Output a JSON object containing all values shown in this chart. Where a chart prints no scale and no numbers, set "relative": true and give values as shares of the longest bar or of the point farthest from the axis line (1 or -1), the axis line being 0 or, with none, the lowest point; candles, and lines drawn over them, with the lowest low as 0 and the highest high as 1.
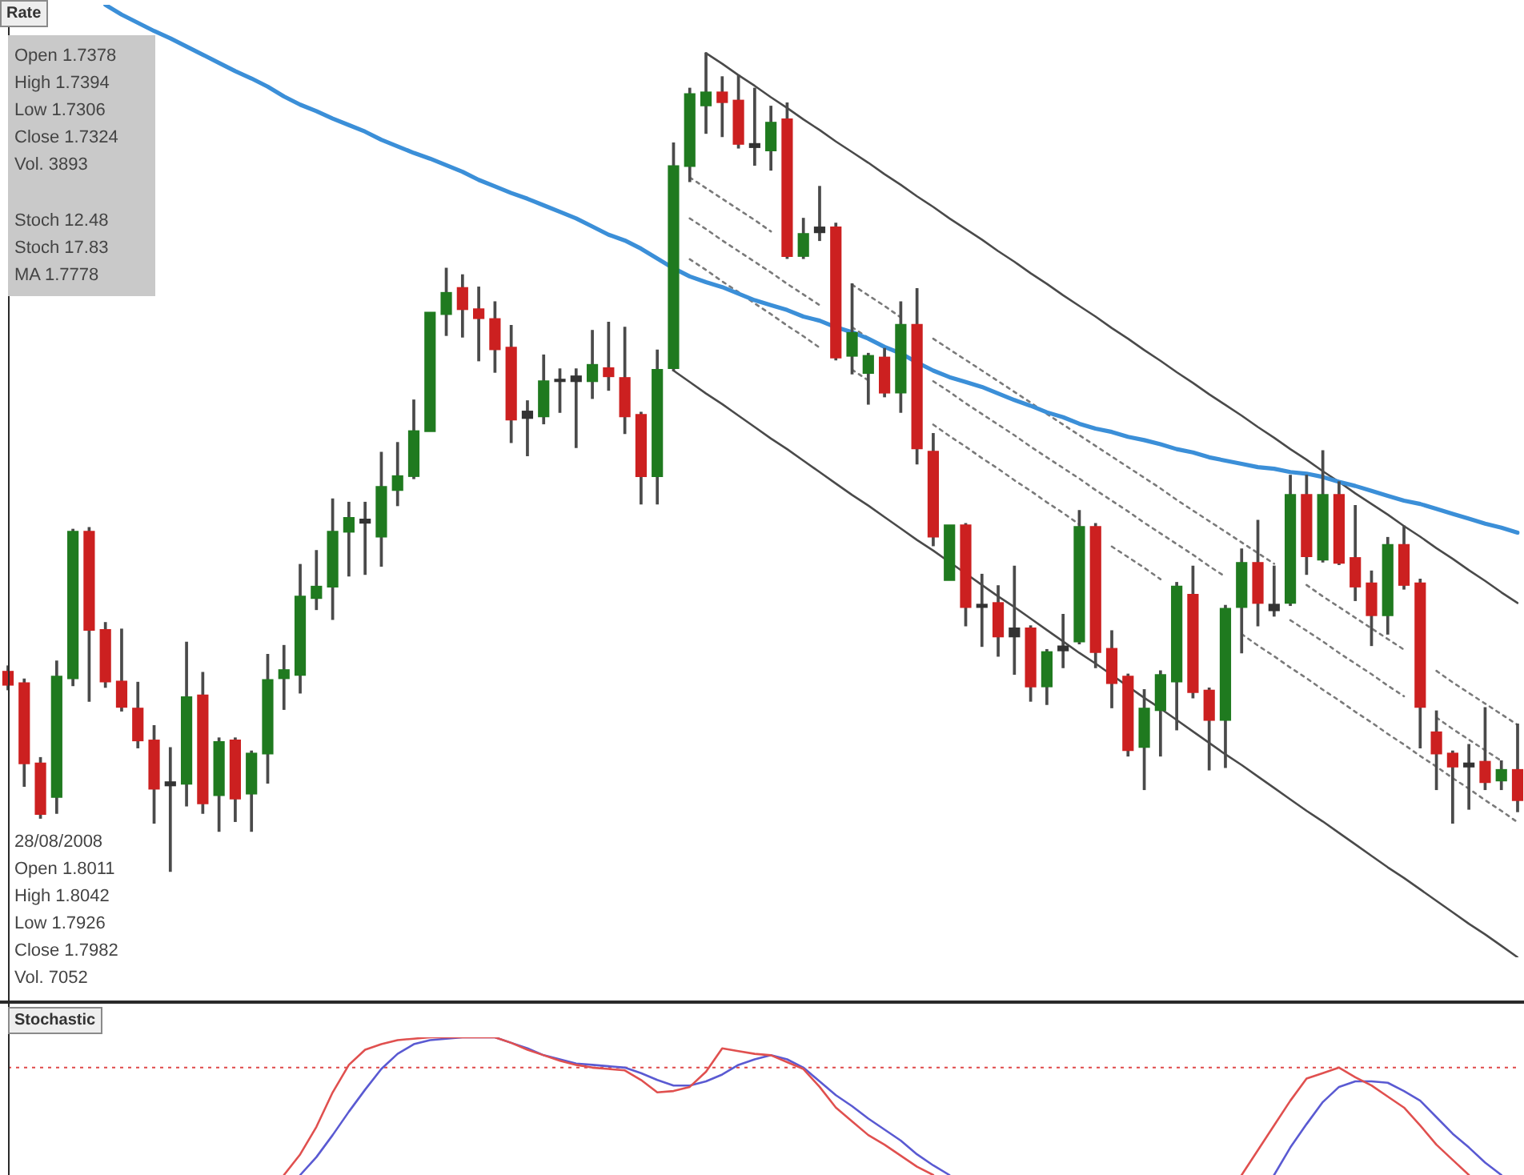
{
  "chart_data": [
    {
      "type": "candlestick",
      "title": "Rate",
      "relative": true,
      "tick_labels": false,
      "categories": [
        null,
        null,
        null,
        null,
        null,
        null,
        null,
        null,
        null,
        null,
        null,
        null,
        null,
        null,
        null,
        null,
        null,
        null,
        null,
        null,
        null,
        null,
        null,
        null,
        null,
        null,
        null,
        null,
        null,
        null,
        null,
        null,
        null,
        null,
        null,
        null,
        null,
        null,
        null,
        null,
        null,
        null,
        null,
        null,
        null,
        null,
        null,
        null,
        null,
        null,
        null,
        null,
        null,
        null,
        null,
        null,
        null,
        null,
        null,
        null,
        null,
        null,
        null,
        null,
        null,
        null,
        null,
        null,
        null,
        null,
        null,
        null,
        null,
        null,
        null,
        null,
        null,
        null,
        null,
        null,
        null,
        null,
        null,
        null,
        null,
        null,
        null,
        null,
        null,
        null,
        null,
        null,
        null,
        null
      ],
      "ohlc": [
        [
          0.245,
          0.251,
          0.222,
          0.227
        ],
        [
          0.231,
          0.235,
          0.104,
          0.131
        ],
        [
          0.133,
          0.139,
          0.065,
          0.069
        ],
        [
          0.09,
          0.257,
          0.071,
          0.239
        ],
        [
          0.235,
          0.418,
          0.227,
          0.416
        ],
        [
          0.416,
          0.42,
          0.208,
          0.294
        ],
        [
          0.296,
          0.304,
          0.225,
          0.231
        ],
        [
          0.233,
          0.296,
          0.196,
          0.2
        ],
        [
          0.2,
          0.231,
          0.151,
          0.159
        ],
        [
          0.161,
          0.178,
          0.059,
          0.1
        ],
        [
          0.11,
          0.151,
          0,
          0.104
        ],
        [
          0.106,
          0.28,
          0.08,
          0.214
        ],
        [
          0.216,
          0.243,
          0.071,
          0.082
        ],
        [
          0.092,
          0.163,
          0.049,
          0.159
        ],
        [
          0.161,
          0.163,
          0.061,
          0.088
        ],
        [
          0.094,
          0.147,
          0.049,
          0.145
        ],
        [
          0.143,
          0.265,
          0.108,
          0.235
        ],
        [
          0.235,
          0.276,
          0.198,
          0.247
        ],
        [
          0.239,
          0.375,
          0.218,
          0.337
        ],
        [
          0.333,
          0.392,
          0.32,
          0.349
        ],
        [
          0.347,
          0.455,
          0.308,
          0.416
        ],
        [
          0.414,
          0.451,
          0.361,
          0.433
        ],
        [
          0.431,
          0.451,
          0.363,
          0.425
        ],
        [
          0.408,
          0.512,
          0.373,
          0.471
        ],
        [
          0.465,
          0.524,
          0.447,
          0.484
        ],
        [
          0.482,
          0.576,
          0.48,
          0.539
        ],
        [
          0.537,
          0.684,
          0.537,
          0.684
        ],
        [
          0.68,
          0.737,
          0.655,
          0.708
        ],
        [
          0.714,
          0.729,
          0.653,
          0.686
        ],
        [
          0.688,
          0.714,
          0.624,
          0.675
        ],
        [
          0.676,
          0.696,
          0.61,
          0.637
        ],
        [
          0.641,
          0.667,
          0.524,
          0.551
        ],
        [
          0.553,
          0.575,
          0.508,
          0.563
        ],
        [
          0.555,
          0.631,
          0.547,
          0.6
        ],
        [
          0.598,
          0.614,
          0.561,
          0.602
        ],
        [
          0.606,
          0.614,
          0.518,
          0.598
        ],
        [
          0.598,
          0.661,
          0.578,
          0.62
        ],
        [
          0.616,
          0.671,
          0.588,
          0.604
        ],
        [
          0.604,
          0.665,
          0.535,
          0.555
        ],
        [
          0.559,
          0.561,
          0.449,
          0.482
        ],
        [
          0.482,
          0.637,
          0.449,
          0.614
        ],
        [
          0.614,
          0.89,
          0.612,
          0.863
        ],
        [
          0.861,
          0.957,
          0.843,
          0.951
        ],
        [
          0.935,
          1,
          0.902,
          0.953
        ],
        [
          0.953,
          0.971,
          0.898,
          0.939
        ],
        [
          0.943,
          0.973,
          0.884,
          0.888
        ],
        [
          0.89,
          0.957,
          0.863,
          0.884
        ],
        [
          0.88,
          0.935,
          0.857,
          0.916
        ],
        [
          0.92,
          0.939,
          0.749,
          0.751
        ],
        [
          0.751,
          0.798,
          0.749,
          0.78
        ],
        [
          0.78,
          0.837,
          0.771,
          0.788
        ],
        [
          0.788,
          0.792,
          0.625,
          0.627
        ],
        [
          0.629,
          0.718,
          0.608,
          0.659
        ],
        [
          0.608,
          0.633,
          0.571,
          0.631
        ],
        [
          0.629,
          0.639,
          0.58,
          0.584
        ],
        [
          0.584,
          0.696,
          0.561,
          0.669
        ],
        [
          0.669,
          0.712,
          0.498,
          0.516
        ],
        [
          0.514,
          0.535,
          0.398,
          0.408
        ],
        [
          0.355,
          0.424,
          0.355,
          0.424
        ],
        [
          0.424,
          0.425,
          0.3,
          0.322
        ],
        [
          0.322,
          0.363,
          0.275,
          0.327
        ],
        [
          0.329,
          0.349,
          0.263,
          0.286
        ],
        [
          0.286,
          0.373,
          0.241,
          0.298
        ],
        [
          0.298,
          0.3,
          0.208,
          0.225
        ],
        [
          0.225,
          0.271,
          0.204,
          0.269
        ],
        [
          0.269,
          0.314,
          0.249,
          0.276
        ],
        [
          0.28,
          0.441,
          0.278,
          0.422
        ],
        [
          0.422,
          0.425,
          0.249,
          0.267
        ],
        [
          0.273,
          0.294,
          0.2,
          0.229
        ],
        [
          0.239,
          0.241,
          0.141,
          0.147
        ],
        [
          0.151,
          0.222,
          0.1,
          0.2
        ],
        [
          0.196,
          0.245,
          0.141,
          0.241
        ],
        [
          0.231,
          0.353,
          0.173,
          0.349
        ],
        [
          0.339,
          0.373,
          0.212,
          0.218
        ],
        [
          0.222,
          0.224,
          0.124,
          0.184
        ],
        [
          0.184,
          0.325,
          0.127,
          0.322
        ],
        [
          0.322,
          0.394,
          0.267,
          0.378
        ],
        [
          0.378,
          0.429,
          0.3,
          0.327
        ],
        [
          0.327,
          0.373,
          0.312,
          0.318
        ],
        [
          0.327,
          0.484,
          0.325,
          0.461
        ],
        [
          0.461,
          0.484,
          0.363,
          0.384
        ],
        [
          0.38,
          0.514,
          0.378,
          0.461
        ],
        [
          0.461,
          0.476,
          0.375,
          0.376
        ],
        [
          0.384,
          0.447,
          0.331,
          0.347
        ],
        [
          0.353,
          0.367,
          0.276,
          0.312
        ],
        [
          0.312,
          0.408,
          0.29,
          0.4
        ],
        [
          0.4,
          0.422,
          0.345,
          0.349
        ],
        [
          0.353,
          0.357,
          0.151,
          0.2
        ],
        [
          0.171,
          0.196,
          0.1,
          0.143
        ],
        [
          0.145,
          0.147,
          0.059,
          0.127
        ],
        [
          0.133,
          0.155,
          0.076,
          0.127
        ],
        [
          0.135,
          0.2,
          0.1,
          0.108
        ],
        [
          0.11,
          0.135,
          0.1,
          0.125
        ],
        [
          0.125,
          0.18,
          0.073,
          0.086
        ]
      ],
      "colors": [
        "#cc2020",
        "#cc2020",
        "#cc2020",
        "#1f7a1f",
        "#1f7a1f",
        "#cc2020",
        "#cc2020",
        "#cc2020",
        "#cc2020",
        "#cc2020",
        "#333333",
        "#1f7a1f",
        "#cc2020",
        "#1f7a1f",
        "#cc2020",
        "#1f7a1f",
        "#1f7a1f",
        "#1f7a1f",
        "#1f7a1f",
        "#1f7a1f",
        "#1f7a1f",
        "#1f7a1f",
        "#333333",
        "#1f7a1f",
        "#1f7a1f",
        "#1f7a1f",
        "#1f7a1f",
        "#1f7a1f",
        "#cc2020",
        "#cc2020",
        "#cc2020",
        "#cc2020",
        "#333333",
        "#1f7a1f",
        "#333333",
        "#333333",
        "#1f7a1f",
        "#cc2020",
        "#cc2020",
        "#cc2020",
        "#1f7a1f",
        "#1f7a1f",
        "#1f7a1f",
        "#1f7a1f",
        "#cc2020",
        "#cc2020",
        "#333333",
        "#1f7a1f",
        "#cc2020",
        "#1f7a1f",
        "#333333",
        "#cc2020",
        "#1f7a1f",
        "#1f7a1f",
        "#cc2020",
        "#1f7a1f",
        "#cc2020",
        "#cc2020",
        "#1f7a1f",
        "#cc2020",
        "#333333",
        "#cc2020",
        "#333333",
        "#cc2020",
        "#1f7a1f",
        "#333333",
        "#1f7a1f",
        "#cc2020",
        "#cc2020",
        "#cc2020",
        "#1f7a1f",
        "#1f7a1f",
        "#1f7a1f",
        "#cc2020",
        "#cc2020",
        "#1f7a1f",
        "#1f7a1f",
        "#cc2020",
        "#333333",
        "#1f7a1f",
        "#cc2020",
        "#1f7a1f",
        "#cc2020",
        "#cc2020",
        "#cc2020",
        "#1f7a1f",
        "#cc2020",
        "#cc2020",
        "#cc2020",
        "#cc2020",
        "#333333",
        "#cc2020",
        "#1f7a1f",
        "#cc2020"
      ],
      "series": [
        {
          "type": "line",
          "color": "#3b8fd8",
          "values": [
            null,
            null,
            null,
            null,
            null,
            null,
            1.059,
            1.047,
            1.037,
            1.027,
            1.018,
            1.008,
            0.998,
            0.988,
            0.978,
            0.969,
            0.959,
            0.947,
            0.937,
            0.929,
            0.92,
            0.912,
            0.904,
            0.894,
            0.886,
            0.878,
            0.871,
            0.863,
            0.855,
            0.845,
            0.837,
            0.829,
            0.822,
            0.814,
            0.806,
            0.798,
            0.788,
            0.778,
            0.771,
            0.761,
            0.749,
            0.737,
            0.727,
            0.72,
            0.714,
            0.706,
            0.698,
            0.692,
            0.686,
            0.678,
            0.673,
            0.665,
            0.659,
            0.651,
            0.641,
            0.633,
            0.622,
            0.612,
            0.604,
            0.598,
            0.592,
            0.584,
            0.576,
            0.569,
            0.561,
            0.555,
            0.547,
            0.541,
            0.537,
            0.531,
            0.527,
            0.522,
            0.516,
            0.512,
            0.506,
            0.502,
            0.498,
            0.494,
            0.492,
            0.488,
            0.486,
            0.482,
            0.476,
            0.471,
            0.465,
            0.459,
            0.453,
            0.449,
            0.443,
            0.437,
            0.431,
            0.425,
            0.42,
            0.414
          ]
        },
        {
          "type": "line",
          "color": "#4a4a4a",
          "values": [
            null,
            null,
            null,
            null,
            null,
            null,
            null,
            null,
            null,
            null,
            null,
            null,
            null,
            null,
            null,
            null,
            null,
            null,
            null,
            null,
            null,
            null,
            null,
            null,
            null,
            null,
            null,
            null,
            null,
            null,
            null,
            null,
            null,
            null,
            null,
            null,
            null,
            null,
            null,
            null,
            null,
            null,
            null,
            1.0,
            0.987,
            0.973,
            0.96,
            0.946,
            0.933,
            0.919,
            0.906,
            0.892,
            0.879,
            0.866,
            0.852,
            0.839,
            0.825,
            0.812,
            0.798,
            0.785,
            0.772,
            0.758,
            0.745,
            0.731,
            0.718,
            0.704,
            0.691,
            0.678,
            0.664,
            0.651,
            0.637,
            0.624,
            0.61,
            0.597,
            0.583,
            0.57,
            0.557,
            0.543,
            0.53,
            0.516,
            0.503,
            0.489,
            0.476,
            0.462,
            0.449,
            0.436,
            0.422,
            0.409,
            0.395,
            0.382,
            0.368,
            0.355,
            0.341,
            0.328
          ]
        },
        {
          "type": "line",
          "color": "#4a4a4a",
          "values": [
            null,
            null,
            null,
            null,
            null,
            null,
            null,
            null,
            null,
            null,
            null,
            null,
            null,
            null,
            null,
            null,
            null,
            null,
            null,
            null,
            null,
            null,
            null,
            null,
            null,
            null,
            null,
            null,
            null,
            null,
            null,
            null,
            null,
            null,
            null,
            null,
            null,
            null,
            null,
            null,
            null,
            0.612,
            0.598,
            0.584,
            0.571,
            0.557,
            0.543,
            0.529,
            0.516,
            0.502,
            0.488,
            0.474,
            0.46,
            0.447,
            0.433,
            0.419,
            0.405,
            0.392,
            0.378,
            0.364,
            0.35,
            0.336,
            0.323,
            0.309,
            0.295,
            0.281,
            0.267,
            0.254,
            0.24,
            0.226,
            0.212,
            0.199,
            0.185,
            0.171,
            0.157,
            0.143,
            0.13,
            0.116,
            0.102,
            0.088,
            0.074,
            0.061,
            0.047,
            0.033,
            0.019,
            0.005,
            -0.008,
            -0.022,
            -0.036,
            -0.05,
            -0.064,
            -0.077,
            -0.091,
            -0.105
          ]
        },
        {
          "type": "line",
          "color": "#7a7a7a",
          "line_style": "dotted",
          "values": [
            null,
            null,
            null,
            null,
            null,
            null,
            null,
            null,
            null,
            null,
            null,
            null,
            null,
            null,
            null,
            null,
            null,
            null,
            null,
            null,
            null,
            null,
            null,
            null,
            null,
            null,
            null,
            null,
            null,
            null,
            null,
            null,
            null,
            null,
            null,
            null,
            null,
            null,
            null,
            null,
            null,
            null,
            0.848,
            0.835,
            0.822,
            0.809,
            0.796,
            0.782,
            null,
            null,
            null,
            null,
            0.717,
            0.704,
            0.691,
            0.677,
            null,
            0.651,
            0.638,
            0.625,
            0.612,
            0.599,
            0.586,
            0.573,
            0.559,
            0.546,
            0.533,
            0.52,
            0.507,
            0.494,
            0.481,
            0.468,
            0.454,
            0.441,
            0.428,
            0.415,
            0.402,
            0.389,
            0.376,
            null,
            0.35,
            0.336,
            0.323,
            0.31,
            0.297,
            0.284,
            0.271,
            null,
            0.245,
            0.231,
            0.218,
            0.205,
            0.192,
            0.179
          ]
        },
        {
          "type": "line",
          "color": "#7a7a7a",
          "line_style": "dotted",
          "values": [
            null,
            null,
            null,
            null,
            null,
            null,
            null,
            null,
            null,
            null,
            null,
            null,
            null,
            null,
            null,
            null,
            null,
            null,
            null,
            null,
            null,
            null,
            null,
            null,
            null,
            null,
            null,
            null,
            null,
            null,
            null,
            null,
            null,
            null,
            null,
            null,
            null,
            null,
            null,
            null,
            null,
            null,
            0.798,
            0.785,
            0.771,
            0.758,
            0.745,
            0.732,
            0.718,
            0.705,
            0.692,
            null,
            0.665,
            0.652,
            0.639,
            null,
            null,
            0.599,
            0.586,
            0.572,
            0.559,
            0.546,
            0.533,
            0.519,
            0.506,
            0.493,
            0.48,
            0.466,
            0.453,
            0.44,
            0.426,
            0.413,
            0.4,
            0.387,
            0.373,
            0.36,
            null,
            null,
            null,
            0.307,
            0.294,
            0.281,
            0.267,
            0.254,
            0.241,
            0.227,
            0.214,
            null,
            0.188,
            0.174,
            0.161,
            0.148,
            0.135,
            null
          ]
        },
        {
          "type": "line",
          "color": "#7a7a7a",
          "line_style": "dotted",
          "values": [
            null,
            null,
            null,
            null,
            null,
            null,
            null,
            null,
            null,
            null,
            null,
            null,
            null,
            null,
            null,
            null,
            null,
            null,
            null,
            null,
            null,
            null,
            null,
            null,
            null,
            null,
            null,
            null,
            null,
            null,
            null,
            null,
            null,
            null,
            null,
            null,
            null,
            null,
            null,
            null,
            null,
            null,
            0.748,
            0.735,
            0.721,
            0.708,
            0.694,
            0.681,
            0.667,
            0.654,
            0.64,
            null,
            0.613,
            0.6,
            null,
            null,
            null,
            0.546,
            0.532,
            0.519,
            0.505,
            0.492,
            0.478,
            0.465,
            0.451,
            0.438,
            0.424,
            null,
            0.397,
            0.384,
            0.371,
            0.357,
            null,
            null,
            null,
            null,
            0.29,
            0.276,
            0.263,
            0.249,
            0.236,
            0.222,
            0.209,
            0.195,
            0.182,
            0.168,
            0.155,
            0.141,
            0.128,
            0.114,
            0.101,
            0.087,
            0.074,
            0.06
          ]
        }
      ],
      "annotations": [
        "Open 1.7378\nHigh 1.7394\nLow 1.7306\nClose 1.7324\nVol. 3893",
        "Stoch 12.48\nStoch 17.83\nMA 1.7778",
        "28/08/2008\nOpen 1.8011\nHigh 1.8042\nLow 1.7926\nClose 1.7982\nVol. 7052"
      ]
    },
    {
      "type": "line",
      "title": "Stochastic",
      "relative": true,
      "tick_labels": false,
      "categories": [
        null,
        null,
        null,
        null,
        null,
        null,
        null,
        null,
        null,
        null,
        null,
        null,
        null,
        null,
        null,
        null,
        null,
        null,
        null,
        null,
        null,
        null,
        null,
        null,
        null,
        null,
        null,
        null,
        null,
        null,
        null,
        null,
        null,
        null,
        null,
        null,
        null,
        null,
        null,
        null,
        null,
        null,
        null,
        null,
        null,
        null,
        null,
        null,
        null,
        null,
        null,
        null,
        null,
        null,
        null,
        null,
        null,
        null,
        null,
        null,
        null,
        null,
        null,
        null,
        null,
        null,
        null,
        null,
        null,
        null,
        null,
        null,
        null,
        null,
        null,
        null,
        null,
        null,
        null,
        null,
        null,
        null,
        null,
        null,
        null,
        null,
        null,
        null,
        null,
        null,
        null,
        null,
        null,
        null
      ],
      "series": [
        {
          "color": "#e0504f",
          "values": [
            null,
            null,
            null,
            null,
            null,
            null,
            null,
            null,
            null,
            null,
            null,
            null,
            null,
            null,
            null,
            null,
            null,
            0,
            0.15,
            0.35,
            0.6,
            0.8,
            0.91,
            0.95,
            0.98,
            0.99,
            1,
            1,
            1,
            1,
            1,
            0.96,
            0.91,
            0.87,
            0.83,
            0.8,
            0.78,
            0.77,
            0.76,
            0.69,
            0.6,
            0.61,
            0.64,
            0.75,
            0.92,
            0.9,
            0.88,
            0.87,
            0.82,
            0.77,
            0.64,
            0.49,
            0.39,
            0.29,
            0.22,
            0.14,
            0.06,
            0,
            null,
            null,
            null,
            null,
            null,
            null,
            null,
            null,
            null,
            null,
            null,
            null,
            null,
            null,
            null,
            null,
            null,
            null,
            0,
            0.18,
            0.36,
            0.54,
            0.7,
            0.74,
            0.78,
            0.71,
            0.65,
            0.57,
            0.49,
            0.36,
            0.22,
            0.11,
            0,
            null,
            null,
            null
          ]
        },
        {
          "color": "#5a5ad2",
          "values": [
            null,
            null,
            null,
            null,
            null,
            null,
            null,
            null,
            null,
            null,
            null,
            null,
            null,
            null,
            null,
            null,
            null,
            null,
            0,
            0.13,
            0.29,
            0.46,
            0.62,
            0.77,
            0.88,
            0.95,
            0.98,
            0.99,
            1,
            1,
            1,
            0.96,
            0.92,
            0.87,
            0.84,
            0.81,
            0.8,
            0.79,
            0.78,
            0.74,
            0.69,
            0.65,
            0.65,
            0.68,
            0.73,
            0.8,
            0.84,
            0.87,
            0.84,
            0.78,
            0.68,
            0.58,
            0.5,
            0.41,
            0.33,
            0.25,
            0.15,
            0.07,
            0,
            null,
            null,
            null,
            null,
            null,
            null,
            null,
            null,
            null,
            null,
            null,
            null,
            null,
            null,
            null,
            null,
            null,
            null,
            null,
            0,
            0.2,
            0.37,
            0.53,
            0.64,
            0.68,
            0.68,
            0.67,
            0.61,
            0.54,
            0.42,
            0.3,
            0.2,
            0.09,
            0,
            null
          ]
        }
      ],
      "ref_lines": [
        {
          "axis": "y",
          "value": 0.78,
          "color": "#e04848",
          "line_style": "dotted"
        }
      ]
    }
  ]
}
